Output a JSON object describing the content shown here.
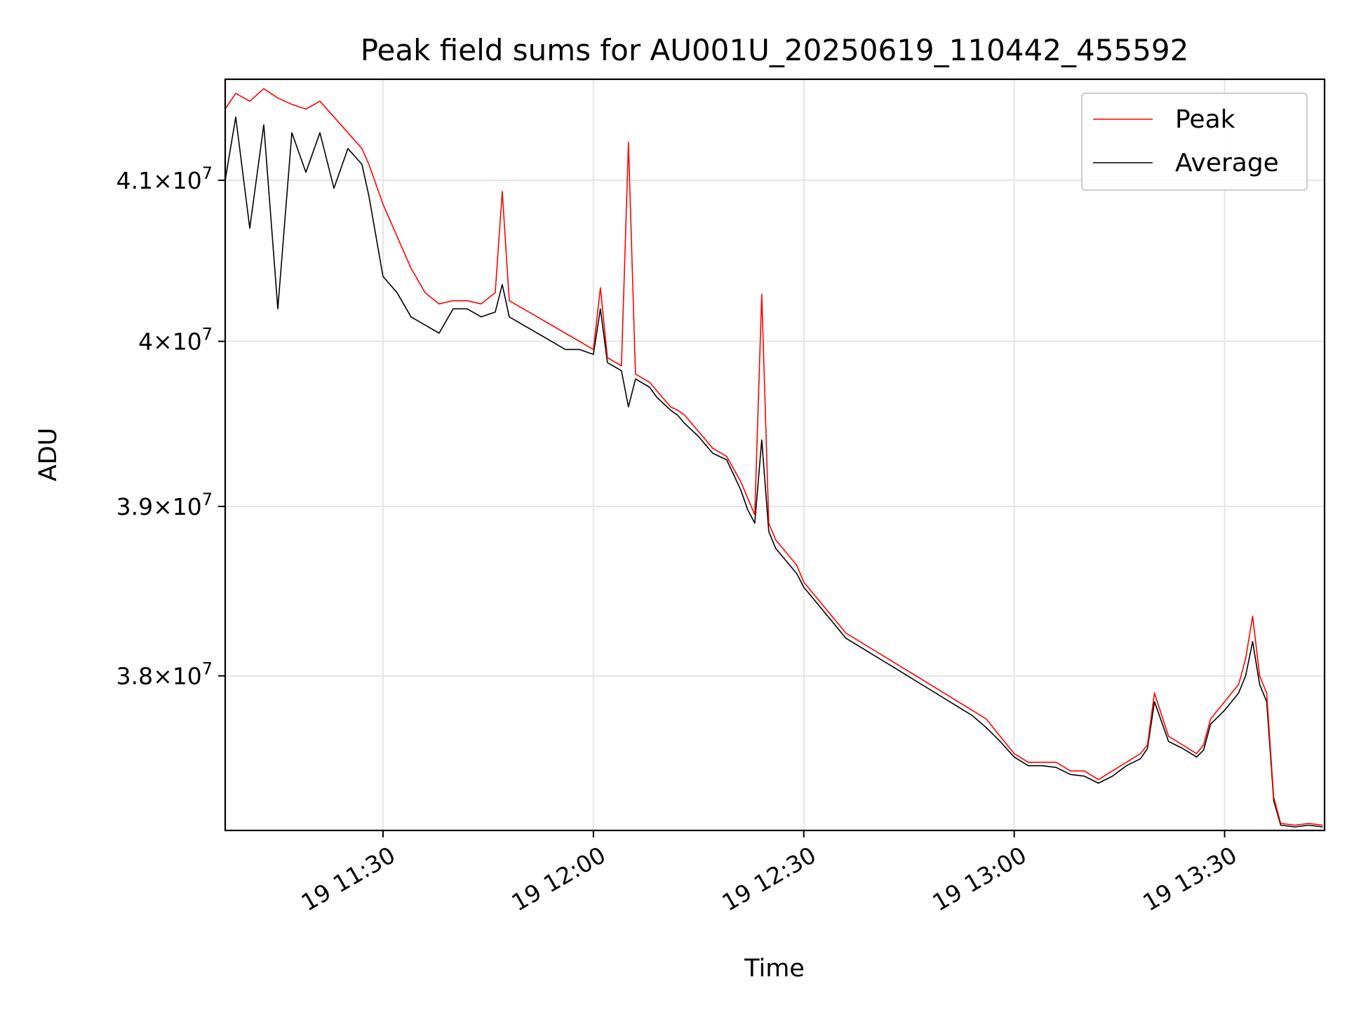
{
  "chart_data": {
    "type": "line",
    "title": "Peak field sums for AU001U_20250619_110442_455592",
    "xlabel": "Time",
    "ylabel": "ADU",
    "x_axis": "datetime",
    "x_range": [
      "2025-06-19 11:07:30",
      "2025-06-19 13:44:15"
    ],
    "y_scale": "log",
    "ylim": [
      37110000,
      41640000
    ],
    "x_ticks": [
      {
        "value": "2025-06-19 11:30",
        "label": "19 11:30"
      },
      {
        "value": "2025-06-19 12:00",
        "label": "19 12:00"
      },
      {
        "value": "2025-06-19 12:30",
        "label": "19 12:30"
      },
      {
        "value": "2025-06-19 13:00",
        "label": "19 13:00"
      },
      {
        "value": "2025-06-19 13:30",
        "label": "19 13:30"
      }
    ],
    "y_ticks": [
      {
        "value": 41000000,
        "mantissa": "4.1",
        "exp": "7"
      },
      {
        "value": 40000000,
        "mantissa": "4",
        "exp": "7"
      },
      {
        "value": 39000000,
        "mantissa": "3.9",
        "exp": "7"
      },
      {
        "value": 38000000,
        "mantissa": "3.8",
        "exp": "7"
      }
    ],
    "grid": true,
    "legend": {
      "placement": "top-right"
    },
    "series": [
      {
        "name": "Peak",
        "color": "#ff0000",
        "x": [
          "11:07:30",
          "11:09:00",
          "11:11:00",
          "11:13:00",
          "11:15:00",
          "11:17:00",
          "11:19:00",
          "11:21:00",
          "11:23:00",
          "11:25:00",
          "11:27:00",
          "11:28:00",
          "11:30:00",
          "11:32:00",
          "11:34:00",
          "11:36:00",
          "11:38:00",
          "11:40:00",
          "11:42:00",
          "11:44:00",
          "11:46:00",
          "11:47:00",
          "11:48:00",
          "11:50:00",
          "11:52:00",
          "11:54:00",
          "11:56:00",
          "11:58:00",
          "12:00:00",
          "12:01:00",
          "12:02:00",
          "12:04:00",
          "12:05:00",
          "12:06:00",
          "12:08:00",
          "12:09:00",
          "12:10:00",
          "12:11:00",
          "12:12:00",
          "12:13:00",
          "12:15:00",
          "12:17:00",
          "12:19:00",
          "12:21:00",
          "12:22:00",
          "12:23:00",
          "12:24:00",
          "12:25:00",
          "12:26:00",
          "12:27:00",
          "12:28:00",
          "12:29:00",
          "12:30:00",
          "12:31:00",
          "12:32:00",
          "12:34:00",
          "12:36:00",
          "12:38:00",
          "12:40:00",
          "12:42:00",
          "12:44:00",
          "12:46:00",
          "12:48:00",
          "12:50:00",
          "12:52:00",
          "12:54:00",
          "12:56:00",
          "12:58:00",
          "13:00:00",
          "13:02:00",
          "13:04:00",
          "13:06:00",
          "13:08:00",
          "13:10:00",
          "13:12:00",
          "13:14:00",
          "13:16:00",
          "13:18:00",
          "13:19:00",
          "13:20:00",
          "13:22:00",
          "13:24:00",
          "13:26:00",
          "13:27:00",
          "13:28:00",
          "13:30:00",
          "13:31:00",
          "13:32:00",
          "13:33:00",
          "13:34:00",
          "13:35:00",
          "13:36:00",
          "13:37:00",
          "13:38:00",
          "13:40:00",
          "13:42:00",
          "13:44:00"
        ],
        "values": [
          41450000,
          41550000,
          41500000,
          41580000,
          41520000,
          41480000,
          41450000,
          41500000,
          41400000,
          41300000,
          41200000,
          41100000,
          40850000,
          40650000,
          40450000,
          40300000,
          40230000,
          40250000,
          40250000,
          40230000,
          40300000,
          40930000,
          40250000,
          40200000,
          40150000,
          40100000,
          40050000,
          40000000,
          39950000,
          40330000,
          39900000,
          39850000,
          41240000,
          39800000,
          39750000,
          39700000,
          39650000,
          39600000,
          39580000,
          39550000,
          39450000,
          39350000,
          39300000,
          39150000,
          39050000,
          38950000,
          40290000,
          38900000,
          38800000,
          38750000,
          38700000,
          38650000,
          38550000,
          38500000,
          38450000,
          38350000,
          38250000,
          38200000,
          38150000,
          38100000,
          38050000,
          38000000,
          37950000,
          37900000,
          37850000,
          37800000,
          37750000,
          37650000,
          37550000,
          37500000,
          37500000,
          37500000,
          37450000,
          37450000,
          37400000,
          37450000,
          37500000,
          37550000,
          37600000,
          37900000,
          37650000,
          37600000,
          37550000,
          37600000,
          37750000,
          37850000,
          37900000,
          37950000,
          38100000,
          38350000,
          38000000,
          37900000,
          37300000,
          37150000,
          37140000,
          37150000,
          37140000
        ]
      },
      {
        "name": "Average",
        "color": "#000000",
        "x": [
          "11:07:30",
          "11:09:00",
          "11:11:00",
          "11:13:00",
          "11:15:00",
          "11:17:00",
          "11:19:00",
          "11:21:00",
          "11:23:00",
          "11:25:00",
          "11:27:00",
          "11:28:00",
          "11:30:00",
          "11:32:00",
          "11:34:00",
          "11:36:00",
          "11:38:00",
          "11:40:00",
          "11:42:00",
          "11:44:00",
          "11:46:00",
          "11:47:00",
          "11:48:00",
          "11:50:00",
          "11:52:00",
          "11:54:00",
          "11:56:00",
          "11:58:00",
          "12:00:00",
          "12:01:00",
          "12:02:00",
          "12:04:00",
          "12:05:00",
          "12:06:00",
          "12:08:00",
          "12:09:00",
          "12:10:00",
          "12:11:00",
          "12:12:00",
          "12:13:00",
          "12:15:00",
          "12:17:00",
          "12:19:00",
          "12:21:00",
          "12:22:00",
          "12:23:00",
          "12:24:00",
          "12:25:00",
          "12:26:00",
          "12:27:00",
          "12:28:00",
          "12:29:00",
          "12:30:00",
          "12:31:00",
          "12:32:00",
          "12:34:00",
          "12:36:00",
          "12:38:00",
          "12:40:00",
          "12:42:00",
          "12:44:00",
          "12:46:00",
          "12:48:00",
          "12:50:00",
          "12:52:00",
          "12:54:00",
          "12:56:00",
          "12:58:00",
          "13:00:00",
          "13:02:00",
          "13:04:00",
          "13:06:00",
          "13:08:00",
          "13:10:00",
          "13:12:00",
          "13:14:00",
          "13:16:00",
          "13:18:00",
          "13:19:00",
          "13:20:00",
          "13:22:00",
          "13:24:00",
          "13:26:00",
          "13:27:00",
          "13:28:00",
          "13:30:00",
          "13:31:00",
          "13:32:00",
          "13:33:00",
          "13:34:00",
          "13:35:00",
          "13:36:00",
          "13:37:00",
          "13:38:00",
          "13:40:00",
          "13:42:00",
          "13:44:00"
        ],
        "values": [
          41000000,
          41400000,
          40700000,
          41350000,
          40200000,
          41300000,
          41050000,
          41300000,
          40950000,
          41200000,
          41100000,
          40900000,
          40400000,
          40300000,
          40150000,
          40100000,
          40050000,
          40200000,
          40200000,
          40150000,
          40180000,
          40350000,
          40150000,
          40100000,
          40050000,
          40000000,
          39950000,
          39950000,
          39920000,
          40200000,
          39870000,
          39820000,
          39600000,
          39770000,
          39720000,
          39660000,
          39620000,
          39580000,
          39550000,
          39500000,
          39420000,
          39320000,
          39280000,
          39100000,
          38980000,
          38900000,
          39400000,
          38850000,
          38750000,
          38700000,
          38650000,
          38600000,
          38520000,
          38470000,
          38420000,
          38320000,
          38220000,
          38170000,
          38120000,
          38070000,
          38020000,
          37970000,
          37920000,
          37870000,
          37820000,
          37770000,
          37700000,
          37620000,
          37530000,
          37480000,
          37480000,
          37470000,
          37430000,
          37420000,
          37380000,
          37420000,
          37480000,
          37520000,
          37580000,
          37850000,
          37620000,
          37580000,
          37530000,
          37570000,
          37720000,
          37800000,
          37850000,
          37900000,
          38000000,
          38200000,
          37950000,
          37850000,
          37280000,
          37140000,
          37130000,
          37140000,
          37130000
        ]
      }
    ]
  }
}
